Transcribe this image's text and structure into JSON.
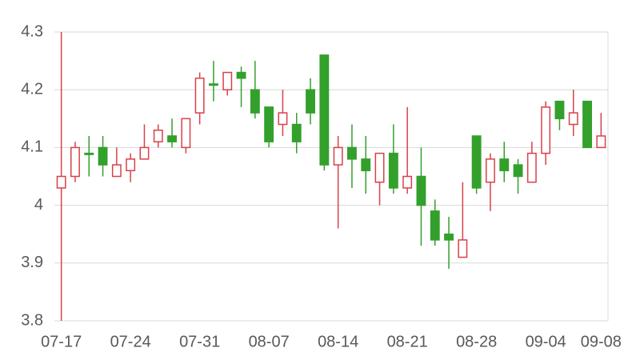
{
  "chart_data": {
    "type": "candlestick",
    "categories": [
      "07-17",
      null,
      null,
      null,
      null,
      "07-24",
      null,
      null,
      null,
      null,
      "07-31",
      null,
      null,
      null,
      null,
      "08-07",
      null,
      null,
      null,
      null,
      "08-14",
      null,
      null,
      null,
      null,
      "08-21",
      null,
      null,
      null,
      null,
      "08-28",
      null,
      null,
      null,
      null,
      "09-04",
      null,
      null,
      null,
      "09-08"
    ],
    "open": [
      4.03,
      4.05,
      4.09,
      4.1,
      4.05,
      4.06,
      4.08,
      4.11,
      4.12,
      4.1,
      4.16,
      4.21,
      4.2,
      4.23,
      4.2,
      4.17,
      4.14,
      4.14,
      4.2,
      4.26,
      4.07,
      4.1,
      4.08,
      4.04,
      4.09,
      4.03,
      4.05,
      3.99,
      3.95,
      3.91,
      4.12,
      4.04,
      4.08,
      4.07,
      4.04,
      4.09,
      4.18,
      4.14,
      4.18,
      4.1
    ],
    "high": [
      4.3,
      4.11,
      4.12,
      4.12,
      4.1,
      4.09,
      4.14,
      4.14,
      4.15,
      4.15,
      4.23,
      4.25,
      4.23,
      4.24,
      4.25,
      4.17,
      4.2,
      4.16,
      4.22,
      4.26,
      4.12,
      4.14,
      4.12,
      4.09,
      4.14,
      4.17,
      4.1,
      4.01,
      3.98,
      4.04,
      4.12,
      4.09,
      4.11,
      4.08,
      4.11,
      4.18,
      4.18,
      4.2,
      4.18,
      4.16
    ],
    "low": [
      3.8,
      4.04,
      4.05,
      4.05,
      4.05,
      4.04,
      4.08,
      4.1,
      4.1,
      4.09,
      4.14,
      4.18,
      4.19,
      4.17,
      4.15,
      4.1,
      4.12,
      4.09,
      4.14,
      4.06,
      3.96,
      4.03,
      4.02,
      4.0,
      4.02,
      4.02,
      3.93,
      3.93,
      3.89,
      3.91,
      4.02,
      3.99,
      4.04,
      4.02,
      4.04,
      4.07,
      4.13,
      4.12,
      4.1,
      4.1
    ],
    "close": [
      4.05,
      4.1,
      4.09,
      4.07,
      4.07,
      4.08,
      4.1,
      4.13,
      4.11,
      4.15,
      4.22,
      4.21,
      4.23,
      4.22,
      4.16,
      4.11,
      4.16,
      4.11,
      4.16,
      4.07,
      4.1,
      4.08,
      4.06,
      4.09,
      4.03,
      4.05,
      4.0,
      3.94,
      3.94,
      3.94,
      4.03,
      4.08,
      4.06,
      4.05,
      4.09,
      4.17,
      4.15,
      4.16,
      4.1,
      4.12
    ],
    "up_color": "#d9404a",
    "down_color": "#33a02c",
    "ylim": [
      3.8,
      4.3
    ],
    "yticks": [
      3.8,
      3.9,
      4,
      4.1,
      4.2,
      4.3
    ],
    "grid": true
  }
}
